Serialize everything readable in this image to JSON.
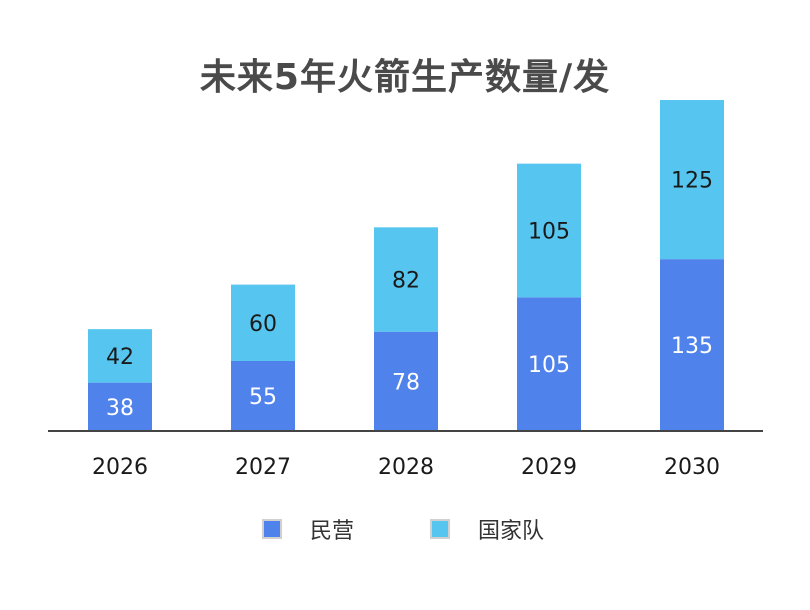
{
  "chart_data": {
    "type": "bar",
    "stacked": true,
    "title": "未来5年火箭生产数量/发",
    "categories": [
      "2026",
      "2027",
      "2028",
      "2029",
      "2030"
    ],
    "series": [
      {
        "name": "民营",
        "values": [
          38,
          55,
          78,
          105,
          135
        ],
        "color": "#5082ec"
      },
      {
        "name": "国家队",
        "values": [
          42,
          60,
          82,
          105,
          125
        ],
        "color": "#56c6f0"
      }
    ],
    "ylim": [
      0,
      260
    ],
    "grid": false,
    "legend_position": "bottom",
    "label_colors": [
      "#ffffff",
      "#1a1a1a"
    ],
    "axis_color": "#444444"
  }
}
